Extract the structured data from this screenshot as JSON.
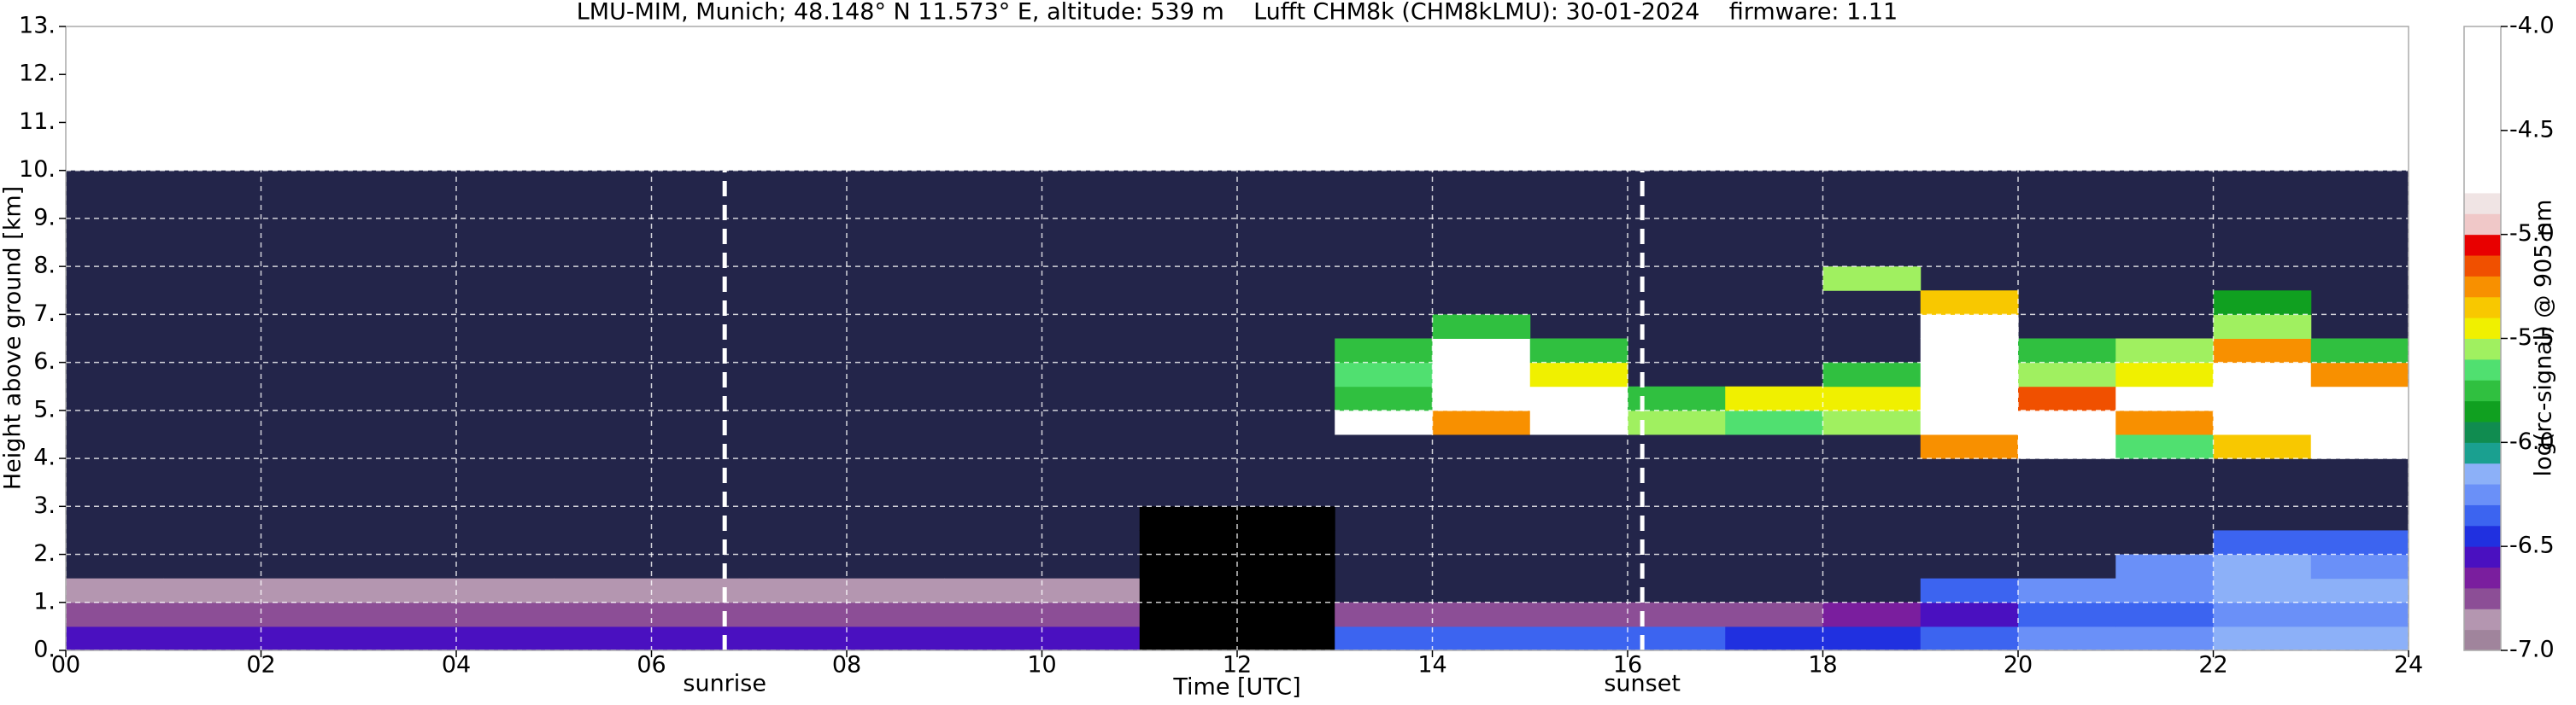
{
  "chart_data": {
    "type": "heatmap",
    "title": "LMU-MIM, Munich; 48.148° N 11.573° E, altitude: 539 m    Lufft CHM8k (CHM8kLMU): 30-01-2024    firmware: 1.11",
    "xlabel": "Time [UTC]",
    "ylabel": "Height above ground [km]",
    "colorbar_label": "log(rc-signal) @ 905 nm",
    "xlim": [
      0,
      24
    ],
    "ylim": [
      0,
      13
    ],
    "xticks": [
      {
        "value": 0,
        "label": "00"
      },
      {
        "value": 2,
        "label": "02"
      },
      {
        "value": 4,
        "label": "04"
      },
      {
        "value": 6,
        "label": "06"
      },
      {
        "value": 8,
        "label": "08"
      },
      10,
      12,
      14,
      16,
      18,
      20,
      22,
      24
    ],
    "yticks": [
      {
        "value": 0,
        "label": "0."
      },
      {
        "value": 1,
        "label": "1."
      },
      {
        "value": 2,
        "label": "2."
      },
      {
        "value": 3,
        "label": "3."
      },
      {
        "value": 4,
        "label": "4."
      },
      {
        "value": 5,
        "label": "5."
      },
      {
        "value": 6,
        "label": "6."
      },
      {
        "value": 7,
        "label": "7."
      },
      {
        "value": 8,
        "label": "8."
      },
      {
        "value": 9,
        "label": "9."
      },
      {
        "value": 10,
        "label": "10."
      },
      {
        "value": 11,
        "label": "11."
      },
      {
        "value": 12,
        "label": "12."
      },
      {
        "value": 13,
        "label": "13."
      }
    ],
    "clim": [
      -7,
      -4
    ],
    "cticks": [
      {
        "value": -4,
        "label": "-4.0"
      },
      -4.5,
      {
        "value": -5,
        "label": "-5.0"
      },
      -5.5,
      {
        "value": -6,
        "label": "-6.0"
      },
      -6.5,
      {
        "value": -7,
        "label": "-7.0"
      }
    ],
    "colors": [
      "#a0849c",
      "#b496b0",
      "#8c4e96",
      "#7a1e9e",
      "#4a10c0",
      "#2030e0",
      "#3c64f0",
      "#6a90f8",
      "#8cb0f8",
      "#1aa090",
      "#108c50",
      "#10a020",
      "#30c040",
      "#50e070",
      "#a0f060",
      "#f0f000",
      "#f8c800",
      "#f89000",
      "#f05000",
      "#e80000",
      "#f0c8c8",
      "#f0e4e4",
      "#ffffff",
      "#ffffff",
      "#ffffff",
      "#ffffff",
      "#ffffff",
      "#ffffff",
      "#ffffff",
      "#ffffff"
    ],
    "nodata_color": "#23254a",
    "under_color": "#000000",
    "grid": true,
    "x_edges": [
      0,
      1,
      2,
      3,
      4,
      5,
      6,
      7,
      8,
      9,
      10,
      11,
      12,
      13,
      14,
      15,
      16,
      17,
      18,
      19,
      20,
      21,
      22,
      23,
      24
    ],
    "y_edges": [
      0,
      0.5,
      1,
      1.5,
      2,
      2.5,
      3,
      3.5,
      4,
      4.5,
      5,
      5.5,
      6,
      6.5,
      7,
      7.5,
      8,
      8.5,
      9,
      9.5,
      10
    ],
    "z": [
      [
        -6.6,
        -6.6,
        -6.6,
        -6.6,
        -6.6,
        -6.6,
        -6.6,
        -6.6,
        -6.6,
        -6.6,
        -6.6,
        -8,
        -8,
        -6.4,
        -6.4,
        -6.4,
        -6.4,
        -6.5,
        -6.5,
        -6.4,
        -6.3,
        -6.3,
        -6.2,
        -6.2
      ],
      [
        -6.8,
        -6.8,
        -6.8,
        -6.8,
        -6.8,
        -6.8,
        -6.8,
        -6.8,
        -6.8,
        -6.8,
        -6.8,
        -8,
        -8,
        -6.8,
        -6.8,
        -6.8,
        -6.8,
        -6.8,
        -6.7,
        -6.6,
        -6.4,
        -6.4,
        -6.3,
        -6.3
      ],
      [
        -6.9,
        -6.9,
        -6.9,
        -6.9,
        -6.9,
        -6.9,
        -6.9,
        -6.9,
        -6.9,
        -6.9,
        -6.9,
        -8,
        -8,
        null,
        null,
        null,
        null,
        null,
        null,
        -6.4,
        -6.3,
        -6.3,
        -6.2,
        -6.2
      ],
      [
        null,
        null,
        null,
        null,
        null,
        null,
        null,
        null,
        null,
        null,
        null,
        -8,
        -8,
        null,
        null,
        null,
        null,
        null,
        null,
        null,
        null,
        -6.3,
        -6.2,
        -6.3
      ],
      [
        null,
        null,
        null,
        null,
        null,
        null,
        null,
        null,
        null,
        null,
        null,
        -8,
        -8,
        null,
        null,
        null,
        null,
        null,
        null,
        null,
        null,
        null,
        -6.4,
        -6.4
      ],
      [
        null,
        null,
        null,
        null,
        null,
        null,
        null,
        null,
        null,
        null,
        null,
        -8,
        -8,
        null,
        null,
        null,
        null,
        null,
        null,
        null,
        null,
        null,
        null,
        null
      ],
      [
        null,
        null,
        null,
        null,
        null,
        null,
        null,
        null,
        null,
        null,
        null,
        null,
        null,
        null,
        null,
        null,
        null,
        null,
        null,
        null,
        null,
        null,
        null,
        null
      ],
      [
        null,
        null,
        null,
        null,
        null,
        null,
        null,
        null,
        null,
        null,
        null,
        null,
        null,
        null,
        null,
        null,
        null,
        null,
        null,
        null,
        null,
        null,
        null,
        null
      ],
      [
        null,
        null,
        null,
        null,
        null,
        null,
        null,
        null,
        null,
        null,
        null,
        null,
        null,
        null,
        null,
        null,
        null,
        null,
        null,
        -5.3,
        -4.5,
        -5.7,
        -5.4,
        -4.5
      ],
      [
        null,
        null,
        null,
        null,
        null,
        null,
        null,
        null,
        null,
        null,
        null,
        null,
        null,
        -4.5,
        -5.3,
        -4.5,
        -5.6,
        -5.7,
        -5.6,
        -4.6,
        -4.5,
        -5.3,
        -4.6,
        -4.6
      ],
      [
        null,
        null,
        null,
        null,
        null,
        null,
        null,
        null,
        null,
        null,
        null,
        null,
        null,
        -5.8,
        -4.5,
        -4.6,
        -5.8,
        -5.5,
        -5.5,
        -4.6,
        -5.2,
        -4.8,
        -4.5,
        -4.6
      ],
      [
        null,
        null,
        null,
        null,
        null,
        null,
        null,
        null,
        null,
        null,
        null,
        null,
        null,
        -5.7,
        -4.6,
        -5.5,
        null,
        null,
        -5.8,
        -4.5,
        -5.6,
        -5.5,
        -4.6,
        -5.3
      ],
      [
        null,
        null,
        null,
        null,
        null,
        null,
        null,
        null,
        null,
        null,
        null,
        null,
        null,
        -5.8,
        -4.6,
        -5.8,
        null,
        null,
        null,
        -4.6,
        -5.8,
        -5.6,
        -5.3,
        -5.8
      ],
      [
        null,
        null,
        null,
        null,
        null,
        null,
        null,
        null,
        null,
        null,
        null,
        null,
        null,
        null,
        -5.8,
        null,
        null,
        null,
        null,
        -4.8,
        null,
        null,
        -5.6,
        null
      ],
      [
        null,
        null,
        null,
        null,
        null,
        null,
        null,
        null,
        null,
        null,
        null,
        null,
        null,
        null,
        null,
        null,
        null,
        null,
        null,
        -5.4,
        null,
        null,
        -5.9,
        null
      ],
      [
        null,
        null,
        null,
        null,
        null,
        null,
        null,
        null,
        null,
        null,
        null,
        null,
        null,
        null,
        null,
        null,
        null,
        null,
        -5.6,
        null,
        null,
        null,
        null,
        null
      ],
      [
        null,
        null,
        null,
        null,
        null,
        null,
        null,
        null,
        null,
        null,
        null,
        null,
        null,
        null,
        null,
        null,
        null,
        null,
        null,
        null,
        null,
        null,
        null,
        null
      ],
      [
        null,
        null,
        null,
        null,
        null,
        null,
        null,
        null,
        null,
        null,
        null,
        null,
        null,
        null,
        null,
        null,
        null,
        null,
        null,
        null,
        null,
        null,
        null,
        null
      ],
      [
        null,
        null,
        null,
        null,
        null,
        null,
        null,
        null,
        null,
        null,
        null,
        null,
        null,
        null,
        null,
        null,
        null,
        null,
        null,
        null,
        null,
        null,
        null,
        null
      ],
      [
        null,
        null,
        null,
        null,
        null,
        null,
        null,
        null,
        null,
        null,
        null,
        null,
        null,
        null,
        null,
        null,
        null,
        null,
        null,
        null,
        null,
        null,
        null,
        null
      ]
    ],
    "annotations": [
      {
        "text": "sunrise",
        "x": 6.75
      },
      {
        "text": "sunset",
        "x": 16.15
      }
    ]
  }
}
